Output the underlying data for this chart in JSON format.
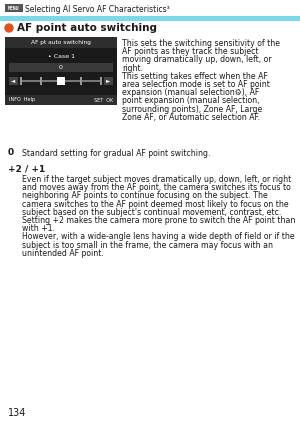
{
  "page_number": "134",
  "header_text": "Selecting AI Servo AF Characteristics³",
  "header_bar_color": "#7dd8e8",
  "header_menu_box_color": "#555555",
  "section_title": "AF point auto switching",
  "section_bullet_color": "#e05020",
  "panel_bg": "#1a1a1a",
  "panel_title": "AF pt auto switching",
  "panel_case": "• Case 1",
  "panel_value": "0",
  "panel_bottom_left": "INFO  Help",
  "panel_bottom_right": "SET  OK",
  "right_text_lines": [
    "This sets the switching sensitivity of the",
    "AF points as they track the subject",
    "moving dramatically up, down, left, or",
    "right.",
    "This setting takes effect when the AF",
    "area selection mode is set to AF point",
    "expansion (manual selection⚙), AF",
    "point expansion (manual selection,",
    "surrounding points), Zone AF, Large",
    "Zone AF, or Automatic selection AF."
  ],
  "label_0": "0",
  "desc_0": "Standard setting for gradual AF point switching.",
  "label_plus": "+2 / +1",
  "desc_plus_lines": [
    "Even if the target subject moves dramatically up, down, left, or right",
    "and moves away from the AF point, the camera switches its focus to",
    "neighboring AF points to continue focusing on the subject. The",
    "camera switches to the AF point deemed most likely to focus on the",
    "subject based on the subject's continual movement, contrast, etc.",
    "Setting +2 makes the camera more prone to switch the AF point than",
    "with +1.",
    "However, with a wide-angle lens having a wide depth of field or if the",
    "subject is too small in the frame, the camera may focus with an",
    "unintended AF point."
  ],
  "bg_color": "#ffffff",
  "text_color": "#1a1a1a"
}
